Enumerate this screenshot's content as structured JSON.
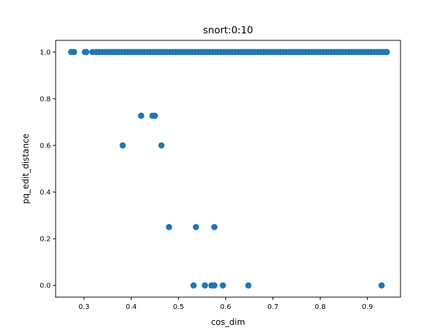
{
  "chart_data": {
    "type": "scatter",
    "title": "snort:0:10",
    "xlabel": "cos_dim",
    "ylabel": "pq_edit_distance",
    "xlim": [
      0.24,
      0.97
    ],
    "ylim": [
      -0.05,
      1.05
    ],
    "xticks": [
      0.3,
      0.4,
      0.5,
      0.6,
      0.7,
      0.8,
      0.9
    ],
    "xtick_labels": [
      "0.3",
      "0.4",
      "0.5",
      "0.6",
      "0.7",
      "0.8",
      "0.9"
    ],
    "yticks": [
      0.0,
      0.2,
      0.4,
      0.6,
      0.8,
      1.0
    ],
    "ytick_labels": [
      "0.0",
      "0.2",
      "0.4",
      "0.6",
      "0.8",
      "1.0"
    ],
    "grid": false,
    "marker_color": "#1f77b4",
    "series": [
      {
        "x": [
          0.273,
          0.279,
          0.302,
          0.305,
          0.318,
          0.326,
          0.332,
          0.338,
          0.344,
          0.35,
          0.356,
          0.362,
          0.368,
          0.374,
          0.38,
          0.386,
          0.392,
          0.398,
          0.404,
          0.41,
          0.416,
          0.422,
          0.428,
          0.434,
          0.44,
          0.446,
          0.452,
          0.458,
          0.464,
          0.47,
          0.476,
          0.482,
          0.488,
          0.494,
          0.5,
          0.506,
          0.512,
          0.518,
          0.524,
          0.53,
          0.536,
          0.542,
          0.548,
          0.554,
          0.56,
          0.566,
          0.572,
          0.578,
          0.584,
          0.59,
          0.596,
          0.602,
          0.608,
          0.614,
          0.62,
          0.626,
          0.632,
          0.638,
          0.644,
          0.65,
          0.656,
          0.662,
          0.668,
          0.674,
          0.68,
          0.686,
          0.692,
          0.698,
          0.704,
          0.71,
          0.716,
          0.722,
          0.728,
          0.734,
          0.74,
          0.746,
          0.752,
          0.758,
          0.764,
          0.77,
          0.776,
          0.782,
          0.788,
          0.794,
          0.8,
          0.806,
          0.812,
          0.818,
          0.824,
          0.83,
          0.836,
          0.842,
          0.848,
          0.854,
          0.86,
          0.866,
          0.872,
          0.878,
          0.884,
          0.89,
          0.896,
          0.902,
          0.908,
          0.914,
          0.92,
          0.926,
          0.932,
          0.938,
          0.941,
          0.382,
          0.421,
          0.445,
          0.45,
          0.464,
          0.48,
          0.537,
          0.576,
          0.532,
          0.556,
          0.57,
          0.576,
          0.594,
          0.648,
          0.93
        ],
        "y": [
          1,
          1,
          1,
          1,
          1,
          1,
          1,
          1,
          1,
          1,
          1,
          1,
          1,
          1,
          1,
          1,
          1,
          1,
          1,
          1,
          1,
          1,
          1,
          1,
          1,
          1,
          1,
          1,
          1,
          1,
          1,
          1,
          1,
          1,
          1,
          1,
          1,
          1,
          1,
          1,
          1,
          1,
          1,
          1,
          1,
          1,
          1,
          1,
          1,
          1,
          1,
          1,
          1,
          1,
          1,
          1,
          1,
          1,
          1,
          1,
          1,
          1,
          1,
          1,
          1,
          1,
          1,
          1,
          1,
          1,
          1,
          1,
          1,
          1,
          1,
          1,
          1,
          1,
          1,
          1,
          1,
          1,
          1,
          1,
          1,
          1,
          1,
          1,
          1,
          1,
          1,
          1,
          1,
          1,
          1,
          1,
          1,
          1,
          1,
          1,
          1,
          1,
          1,
          1,
          1,
          1,
          1,
          1,
          1,
          0.6,
          0.727,
          0.727,
          0.727,
          0.6,
          0.25,
          0.25,
          0.25,
          0,
          0,
          0,
          0,
          0,
          0,
          0
        ]
      }
    ]
  }
}
